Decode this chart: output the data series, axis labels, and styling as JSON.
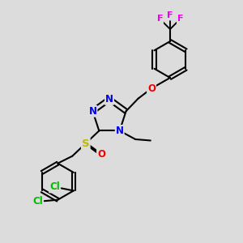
{
  "bg_color": "#dcdcdc",
  "bond_color": "#000000",
  "bond_width": 1.5,
  "atom_colors": {
    "N": "#0000ee",
    "O": "#ee0000",
    "S": "#bbbb00",
    "Cl": "#00bb00",
    "F": "#ee00ee",
    "C": "#000000"
  }
}
